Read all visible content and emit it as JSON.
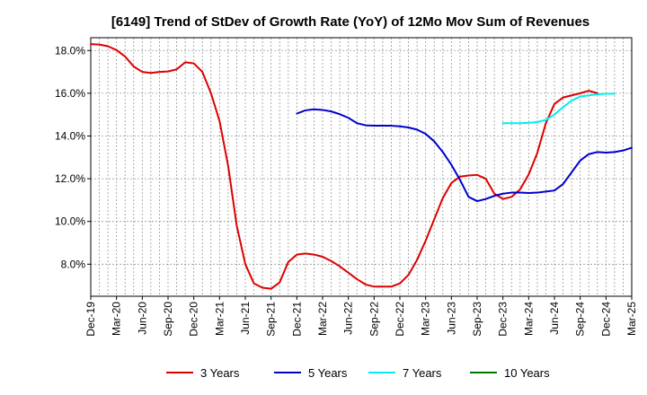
{
  "chart_data": {
    "type": "line",
    "title": "[6149]  Trend of StDev of Growth Rate (YoY) of 12Mo Mov Sum of Revenues",
    "xlabel": "",
    "ylabel": "",
    "ylim": [
      6.5,
      18.6
    ],
    "y_ticks": [
      8.0,
      10.0,
      12.0,
      14.0,
      16.0,
      18.0
    ],
    "y_tick_labels": [
      "8.0%",
      "10.0%",
      "12.0%",
      "14.0%",
      "16.0%",
      "18.0%"
    ],
    "x_range": [
      0,
      63
    ],
    "x_ticks": [
      0,
      3,
      6,
      9,
      12,
      15,
      18,
      21,
      24,
      27,
      30,
      33,
      36,
      39,
      42,
      45,
      48,
      51,
      54,
      57,
      60,
      63
    ],
    "x_tick_labels": [
      "Dec-19",
      "Mar-20",
      "Jun-20",
      "Sep-20",
      "Dec-20",
      "Mar-21",
      "Jun-21",
      "Sep-21",
      "Dec-21",
      "Mar-22",
      "Jun-22",
      "Sep-22",
      "Dec-22",
      "Mar-23",
      "Jun-23",
      "Sep-23",
      "Dec-23",
      "Mar-24",
      "Jun-24",
      "Sep-24",
      "Dec-24",
      "Mar-25"
    ],
    "grid": true,
    "legend_position": "bottom",
    "series": [
      {
        "name": "3 Years",
        "color": "#dd0000",
        "start": 0,
        "values": [
          18.3,
          18.28,
          18.2,
          18.02,
          17.72,
          17.25,
          17.0,
          16.95,
          17.0,
          17.02,
          17.12,
          17.45,
          17.4,
          17.0,
          16.0,
          14.7,
          12.6,
          9.8,
          8.0,
          7.1,
          6.9,
          6.85,
          7.15,
          8.1,
          8.45,
          8.5,
          8.45,
          8.35,
          8.15,
          7.9,
          7.6,
          7.3,
          7.05,
          6.95,
          6.95,
          6.95,
          7.1,
          7.5,
          8.2,
          9.1,
          10.1,
          11.1,
          11.8,
          12.1,
          12.15,
          12.18,
          12.0,
          11.3,
          11.05,
          11.15,
          11.5,
          12.2,
          13.2,
          14.6,
          15.5,
          15.8,
          15.9,
          16.0,
          16.12,
          16.0
        ]
      },
      {
        "name": "5 Years",
        "color": "#0000cc",
        "start": 24,
        "values": [
          15.05,
          15.2,
          15.25,
          15.22,
          15.15,
          15.02,
          14.85,
          14.6,
          14.5,
          14.48,
          14.48,
          14.48,
          14.45,
          14.4,
          14.3,
          14.1,
          13.75,
          13.25,
          12.65,
          11.95,
          11.15,
          10.95,
          11.05,
          11.2,
          11.3,
          11.35,
          11.35,
          11.33,
          11.35,
          11.4,
          11.45,
          11.75,
          12.3,
          12.85,
          13.15,
          13.25,
          13.22,
          13.25,
          13.32,
          13.45
        ]
      },
      {
        "name": "7 Years",
        "color": "#00eeee",
        "start": 48,
        "values": [
          14.6,
          14.6,
          14.6,
          14.62,
          14.65,
          14.75,
          15.0,
          15.35,
          15.65,
          15.85,
          15.9,
          15.95,
          15.98,
          15.98
        ]
      },
      {
        "name": "10 Years",
        "color": "#007700",
        "start": 63,
        "values": []
      }
    ]
  }
}
